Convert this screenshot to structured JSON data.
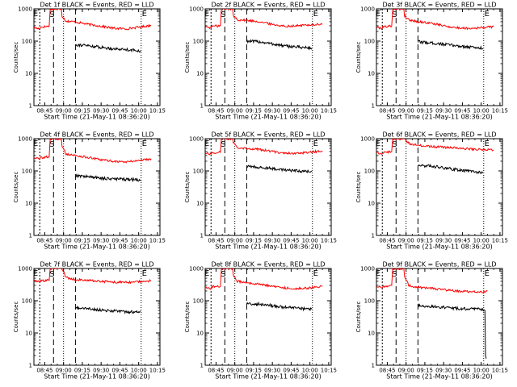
{
  "chart_data": {
    "type": "line",
    "ylabel": "Counts/sec",
    "xlabel": "Start Time (21-May-11 08:36:20)",
    "y_scale": "log",
    "ylim": [
      1,
      1000
    ],
    "y_ticks": [
      "1",
      "10",
      "100",
      "1000"
    ],
    "x_ticks": [
      "08:45",
      "09:00",
      "09:15",
      "09:30",
      "09:45",
      "10:00",
      "10:15"
    ],
    "x_tick_minutes": [
      45,
      60,
      75,
      90,
      105,
      120,
      135
    ],
    "xlim_minutes": [
      36.33,
      137
    ],
    "marker_labels": [
      "E",
      "S",
      "E"
    ],
    "colors": {
      "events": "#000000",
      "lld": "#ff0000"
    },
    "panels": [
      {
        "title": "Det 1f BLACK = Events, RED = LLD",
        "lines": {
          "E1": 41,
          "S": 49.5,
          "d1": 52,
          "d2": 60,
          "d3": 69.5,
          "E2": 122
        },
        "lld": [
          [
            36.5,
            260
          ],
          [
            41,
            240
          ],
          [
            41.5,
            270
          ],
          [
            48.5,
            290
          ],
          [
            49.3,
            1000
          ],
          [
            52,
            1000
          ],
          [
            58.2,
            1000
          ],
          [
            58.8,
            600
          ],
          [
            62,
            420
          ],
          [
            70,
            390
          ],
          [
            80,
            330
          ],
          [
            90,
            290
          ],
          [
            100,
            250
          ],
          [
            110,
            240
          ],
          [
            120,
            270
          ],
          [
            130,
            310
          ]
        ],
        "events": [
          [
            69.5,
            78
          ],
          [
            80,
            72
          ],
          [
            90,
            64
          ],
          [
            100,
            58
          ],
          [
            110,
            55
          ],
          [
            121.5,
            50
          ]
        ]
      },
      {
        "title": "Det 2f BLACK = Events, RED = LLD",
        "lines": {
          "E1": 41,
          "S": 49.5,
          "d1": 52,
          "d2": 60,
          "d3": 69.5,
          "E2": 122
        },
        "lld": [
          [
            36.5,
            280
          ],
          [
            41,
            260
          ],
          [
            41.5,
            290
          ],
          [
            48.5,
            300
          ],
          [
            49.3,
            1000
          ],
          [
            52,
            1000
          ],
          [
            58.2,
            1000
          ],
          [
            58.8,
            620
          ],
          [
            62,
            460
          ],
          [
            70,
            440
          ],
          [
            80,
            400
          ],
          [
            90,
            330
          ],
          [
            100,
            290
          ],
          [
            110,
            300
          ],
          [
            120,
            320
          ],
          [
            130,
            330
          ]
        ],
        "events": [
          [
            69.5,
            100
          ],
          [
            80,
            95
          ],
          [
            90,
            82
          ],
          [
            100,
            70
          ],
          [
            110,
            66
          ],
          [
            121.5,
            60
          ]
        ]
      },
      {
        "title": "Det 3f BLACK = Events, RED = LLD",
        "lines": {
          "E1": 41,
          "S": 49.5,
          "d1": 52,
          "d2": 60,
          "d3": 69.5,
          "E2": 122
        },
        "lld": [
          [
            36.5,
            270
          ],
          [
            41,
            250
          ],
          [
            41.5,
            280
          ],
          [
            48.5,
            290
          ],
          [
            49.3,
            1000
          ],
          [
            52,
            1000
          ],
          [
            58.2,
            1000
          ],
          [
            58.8,
            620
          ],
          [
            62,
            460
          ],
          [
            70,
            400
          ],
          [
            80,
            360
          ],
          [
            90,
            300
          ],
          [
            100,
            260
          ],
          [
            110,
            250
          ],
          [
            120,
            260
          ],
          [
            130,
            280
          ]
        ],
        "events": [
          [
            69.5,
            95
          ],
          [
            80,
            88
          ],
          [
            90,
            80
          ],
          [
            100,
            72
          ],
          [
            110,
            66
          ],
          [
            121.5,
            60
          ]
        ]
      },
      {
        "title": "Det 4f BLACK = Events, RED = LLD",
        "lines": {
          "E1": 41,
          "S": 49.5,
          "d1": 52,
          "d2": 60,
          "d3": 69.5,
          "E2": 122
        },
        "lld": [
          [
            36.5,
            260
          ],
          [
            41,
            230
          ],
          [
            41.5,
            260
          ],
          [
            48.5,
            270
          ],
          [
            49.3,
            1000
          ],
          [
            52,
            1000
          ],
          [
            58.2,
            1000
          ],
          [
            58.8,
            560
          ],
          [
            62,
            340
          ],
          [
            70,
            300
          ],
          [
            80,
            260
          ],
          [
            90,
            220
          ],
          [
            100,
            200
          ],
          [
            110,
            190
          ],
          [
            120,
            210
          ],
          [
            130,
            240
          ]
        ],
        "events": [
          [
            69.5,
            72
          ],
          [
            80,
            66
          ],
          [
            90,
            60
          ],
          [
            100,
            56
          ],
          [
            110,
            55
          ],
          [
            121.5,
            52
          ]
        ]
      },
      {
        "title": "Det 5f BLACK = Events, RED = LLD",
        "lines": {
          "E1": 41,
          "S": 49.5,
          "d1": 52,
          "d2": 60,
          "d3": 69.5,
          "E2": 122
        },
        "lld": [
          [
            36.5,
            370
          ],
          [
            41,
            330
          ],
          [
            41.5,
            360
          ],
          [
            48.5,
            380
          ],
          [
            49.3,
            1000
          ],
          [
            52,
            1000
          ],
          [
            58.2,
            1000
          ],
          [
            58.8,
            800
          ],
          [
            62,
            540
          ],
          [
            70,
            500
          ],
          [
            80,
            460
          ],
          [
            90,
            400
          ],
          [
            100,
            360
          ],
          [
            110,
            350
          ],
          [
            120,
            380
          ],
          [
            130,
            420
          ]
        ],
        "events": [
          [
            69.5,
            135
          ],
          [
            80,
            130
          ],
          [
            90,
            118
          ],
          [
            100,
            108
          ],
          [
            110,
            100
          ],
          [
            121.5,
            98
          ]
        ]
      },
      {
        "title": "Det 6f BLACK = Events, RED = LLD",
        "lines": {
          "E1": 41,
          "S": 49.5,
          "d1": 52,
          "d2": 60,
          "d3": 69.5,
          "E2": 122
        },
        "lld": [
          [
            36.5,
            380
          ],
          [
            41,
            340
          ],
          [
            41.5,
            370
          ],
          [
            48.5,
            400
          ],
          [
            49.3,
            1000
          ],
          [
            52,
            1000
          ],
          [
            58.2,
            1000
          ],
          [
            58.8,
            1000
          ],
          [
            62,
            720
          ],
          [
            70,
            620
          ],
          [
            80,
            570
          ],
          [
            90,
            540
          ],
          [
            100,
            520
          ],
          [
            110,
            480
          ],
          [
            120,
            460
          ],
          [
            130,
            450
          ]
        ],
        "events": [
          [
            69.5,
            150
          ],
          [
            80,
            140
          ],
          [
            90,
            125
          ],
          [
            100,
            110
          ],
          [
            110,
            100
          ],
          [
            121.5,
            88
          ]
        ]
      },
      {
        "title": "Det 7f BLACK = Events, RED = LLD",
        "lines": {
          "E1": 41,
          "S": 49.5,
          "d1": 52,
          "d2": 60,
          "d3": 69.5,
          "E2": 122
        },
        "lld": [
          [
            36.5,
            420
          ],
          [
            41,
            380
          ],
          [
            41.5,
            410
          ],
          [
            48.5,
            430
          ],
          [
            49.3,
            1000
          ],
          [
            52,
            1000
          ],
          [
            58.2,
            1000
          ],
          [
            58.8,
            1000
          ],
          [
            62,
            520
          ],
          [
            70,
            450
          ],
          [
            80,
            420
          ],
          [
            90,
            400
          ],
          [
            100,
            380
          ],
          [
            110,
            370
          ],
          [
            120,
            390
          ],
          [
            130,
            420
          ]
        ],
        "events": [
          [
            69.5,
            60
          ],
          [
            80,
            56
          ],
          [
            90,
            52
          ],
          [
            100,
            48
          ],
          [
            110,
            45
          ],
          [
            121.5,
            46
          ]
        ]
      },
      {
        "title": "Det 8f BLACK = Events, RED = LLD",
        "lines": {
          "E1": 41,
          "S": 49.5,
          "d1": 52,
          "d2": 60,
          "d3": 69.5,
          "E2": 122
        },
        "lld": [
          [
            36.5,
            270
          ],
          [
            41,
            240
          ],
          [
            41.5,
            270
          ],
          [
            48.5,
            280
          ],
          [
            49.3,
            1000
          ],
          [
            52,
            1000
          ],
          [
            58.2,
            1000
          ],
          [
            58.8,
            620
          ],
          [
            62,
            400
          ],
          [
            70,
            360
          ],
          [
            80,
            320
          ],
          [
            90,
            280
          ],
          [
            100,
            250
          ],
          [
            110,
            240
          ],
          [
            120,
            250
          ],
          [
            130,
            280
          ]
        ],
        "events": [
          [
            69.5,
            82
          ],
          [
            80,
            78
          ],
          [
            90,
            70
          ],
          [
            100,
            62
          ],
          [
            110,
            58
          ],
          [
            121.5,
            55
          ]
        ]
      },
      {
        "title": "Det 9f BLACK = Events, RED = LLD",
        "lines": {
          "E1": 41,
          "S": 49.5,
          "d1": 52,
          "d2": 60,
          "d3": 69.5,
          "E2": 122
        },
        "lld": [
          [
            36.5,
            280
          ],
          [
            41,
            250
          ],
          [
            41.5,
            280
          ],
          [
            48.5,
            300
          ],
          [
            49.3,
            1000
          ],
          [
            52,
            1000
          ],
          [
            58.2,
            1000
          ],
          [
            58.8,
            600
          ],
          [
            62,
            300
          ],
          [
            70,
            260
          ],
          [
            80,
            240
          ],
          [
            90,
            220
          ],
          [
            100,
            200
          ],
          [
            110,
            190
          ],
          [
            120,
            190
          ],
          [
            125,
            200
          ]
        ],
        "events": [
          [
            69.5,
            70
          ],
          [
            80,
            66
          ],
          [
            90,
            62
          ],
          [
            100,
            58
          ],
          [
            110,
            56
          ],
          [
            120,
            55
          ],
          [
            123,
            50
          ],
          [
            123.5,
            2
          ],
          [
            124,
            1.6
          ]
        ]
      }
    ]
  }
}
